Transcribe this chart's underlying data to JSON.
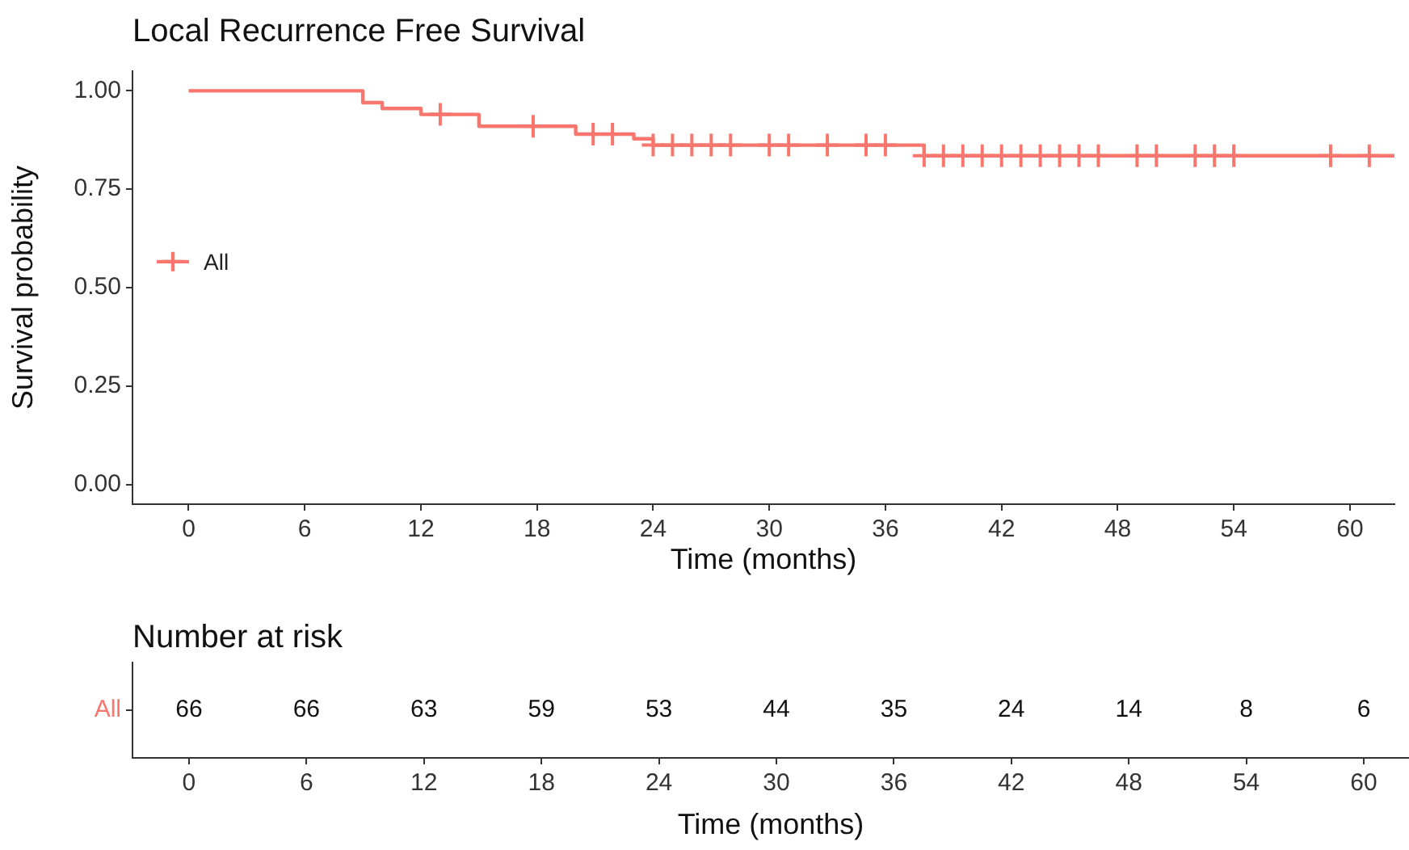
{
  "chart_data": [
    {
      "type": "step",
      "title": "Local Recurrence Free Survival",
      "xlabel": "Time (months)",
      "ylabel": "Survival probability",
      "series": [
        {
          "name": "All",
          "type": "step",
          "color": "#f8766d",
          "x": [
            0,
            9,
            10,
            12,
            15,
            20,
            23,
            24,
            38,
            62.3
          ],
          "values": [
            1.0,
            0.97,
            0.955,
            0.94,
            0.91,
            0.89,
            0.878,
            0.862,
            0.835,
            0.835
          ]
        },
        {
          "type": "scatter",
          "marker": "cross",
          "color": "#f8766d",
          "x": [
            13,
            17.8,
            20.9,
            21.9,
            24,
            25,
            26,
            27,
            28,
            30,
            31,
            33,
            35,
            36,
            38,
            39,
            40,
            41,
            42,
            43,
            44,
            45,
            46,
            47,
            49,
            50,
            52,
            53,
            54,
            59,
            61
          ],
          "values": [
            0.94,
            0.91,
            0.89,
            0.89,
            0.862,
            0.862,
            0.862,
            0.862,
            0.862,
            0.862,
            0.862,
            0.862,
            0.862,
            0.862,
            0.835,
            0.835,
            0.835,
            0.835,
            0.835,
            0.835,
            0.835,
            0.835,
            0.835,
            0.835,
            0.835,
            0.835,
            0.835,
            0.835,
            0.835,
            0.835,
            0.835
          ]
        }
      ],
      "xlim": [
        -2.9,
        62.3
      ],
      "xticks": [
        0,
        6,
        12,
        18,
        24,
        30,
        36,
        42,
        48,
        54,
        60
      ],
      "ylim": [
        -0.05,
        1.05
      ],
      "yticks": [
        {
          "value": 0,
          "label": "0.00"
        },
        {
          "value": 0.25,
          "label": "0.25"
        },
        {
          "value": 0.5,
          "label": "0.50"
        },
        {
          "value": 0.75,
          "label": "0.75"
        },
        {
          "value": 1,
          "label": "1.00"
        }
      ],
      "grid": false,
      "legend": "left"
    },
    {
      "type": "heatmap",
      "title": "Number at risk",
      "xlabel": "Time (months)",
      "data_labels": true,
      "categories": [
        "0",
        "6",
        "12",
        "18",
        "24",
        "30",
        "36",
        "42",
        "48",
        "54",
        "60"
      ],
      "y_categories": [
        "All"
      ],
      "cells": [
        [
          66,
          66,
          63,
          59,
          53,
          44,
          35,
          24,
          14,
          8,
          6
        ]
      ]
    }
  ]
}
